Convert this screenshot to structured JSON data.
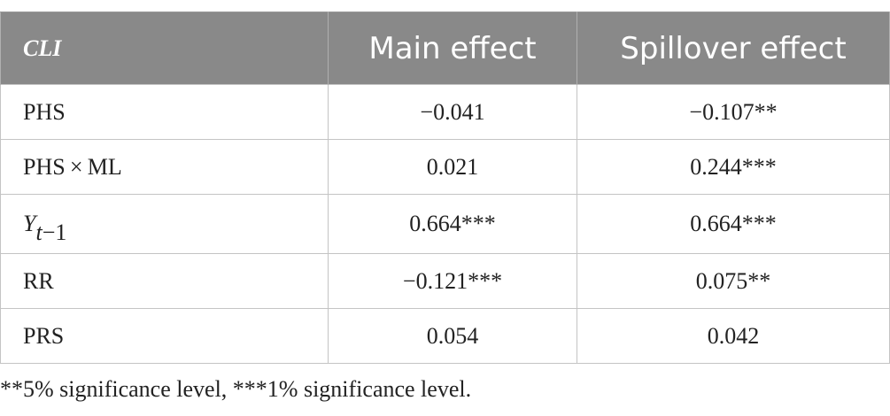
{
  "chart_data": {
    "type": "table",
    "columns": [
      "CLI",
      "Main effect",
      "Spillover effect"
    ],
    "rows": [
      {
        "label": "PHS",
        "main": "−0.041",
        "spillover": "−0.107**"
      },
      {
        "label": "PHS × ML",
        "main": "0.021",
        "spillover": "0.244***"
      },
      {
        "label_base": "Y",
        "label_sub_var": "t",
        "label_sub_rest": "−1",
        "main": "0.664***",
        "spillover": "0.664***"
      },
      {
        "label": "RR",
        "main": "−0.121***",
        "spillover": "0.075**"
      },
      {
        "label": "PRS",
        "main": "0.054",
        "spillover": "0.042"
      }
    ],
    "footnote": "**5% significance level, ***1% significance level."
  },
  "colors": {
    "header_bg": "#898989",
    "header_text": "#ffffff",
    "border": "#c4c4c4",
    "text": "#222222"
  }
}
